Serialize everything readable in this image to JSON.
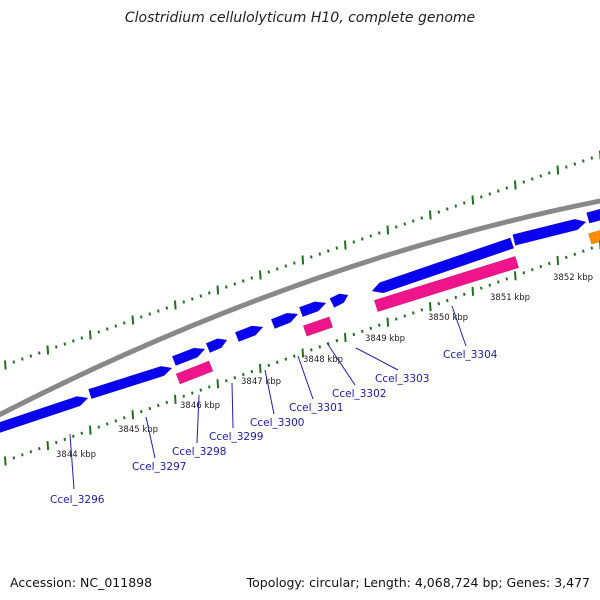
{
  "title": "Clostridium cellulolyticum H10, complete genome",
  "footer": {
    "accession": "Accession: NC_011898",
    "summary": "Topology: circular; Length: 4,068,724 bp; Genes: 3,477"
  },
  "colors": {
    "genome_line": "#888888",
    "forward_gene": "#0a00f0",
    "reverse_gene": "#f0148c",
    "other_gene": "#ff8c00",
    "tick": "#207020",
    "label": "#1a1aa8"
  },
  "kbp_ticks": [
    "3844 kbp",
    "3845 kbp",
    "3846 kbp",
    "3847 kbp",
    "3848 kbp",
    "3849 kbp",
    "3850 kbp",
    "3851 kbp",
    "3852 kbp"
  ],
  "genes": [
    {
      "locus": "Ccel_3296"
    },
    {
      "locus": "Ccel_3297"
    },
    {
      "locus": "Ccel_3298"
    },
    {
      "locus": "Ccel_3299"
    },
    {
      "locus": "Ccel_3300"
    },
    {
      "locus": "Ccel_3301"
    },
    {
      "locus": "Ccel_3302"
    },
    {
      "locus": "Ccel_3303"
    },
    {
      "locus": "Ccel_3304"
    }
  ]
}
